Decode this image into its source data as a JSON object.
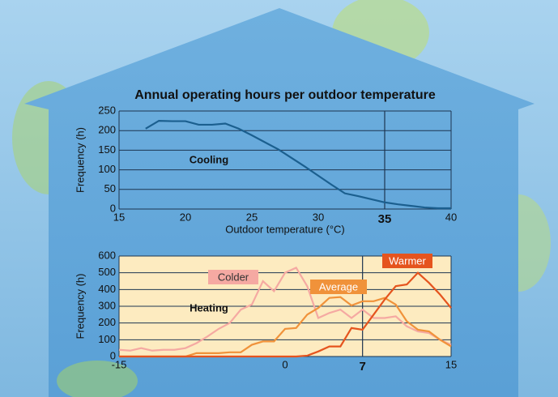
{
  "chart_data": [
    {
      "type": "line",
      "title": "Annual operating hours per outdoor temperature",
      "xlabel": "Outdoor temperature (°C)",
      "ylabel": "Frequency (h)",
      "x": [
        17,
        18,
        19,
        20,
        21,
        22,
        23,
        24,
        25,
        26,
        27,
        28,
        29,
        30,
        31,
        32,
        33,
        34,
        35,
        36,
        37,
        38,
        39,
        40
      ],
      "series": [
        {
          "name": "Cooling",
          "color": "#1b5f8f",
          "values": [
            205,
            225,
            224,
            224,
            215,
            215,
            218,
            205,
            188,
            170,
            152,
            130,
            108,
            85,
            62,
            40,
            33,
            25,
            17,
            12,
            8,
            4,
            2,
            2
          ]
        }
      ],
      "xlim": [
        15,
        40
      ],
      "xticks": [
        15,
        20,
        25,
        30,
        40
      ],
      "reference_line": 35,
      "ylim": [
        0,
        250
      ],
      "yticks": [
        0,
        50,
        100,
        150,
        200,
        250
      ],
      "grid": true
    },
    {
      "type": "line",
      "ylabel": "Frequency (h)",
      "annotation": "Heating",
      "x": [
        -15,
        -14,
        -13,
        -12,
        -11,
        -10,
        -9,
        -8,
        -7,
        -6,
        -5,
        -4,
        -3,
        -2,
        -1,
        0,
        1,
        2,
        3,
        4,
        5,
        6,
        7,
        8,
        9,
        10,
        11,
        12,
        13,
        14,
        15
      ],
      "series": [
        {
          "name": "Colder",
          "color": "#f5a9a2",
          "values": [
            40,
            35,
            50,
            35,
            40,
            40,
            50,
            80,
            120,
            165,
            200,
            280,
            310,
            450,
            390,
            500,
            530,
            420,
            230,
            260,
            280,
            230,
            280,
            230,
            230,
            240,
            180,
            150,
            140,
            100,
            70
          ]
        },
        {
          "name": "Average",
          "color": "#f0923a",
          "values": [
            0,
            0,
            0,
            0,
            0,
            0,
            0,
            20,
            20,
            20,
            25,
            25,
            70,
            90,
            90,
            165,
            170,
            250,
            290,
            350,
            355,
            305,
            330,
            330,
            350,
            310,
            210,
            160,
            150,
            100,
            60
          ]
        },
        {
          "name": "Warmer",
          "color": "#e5541e",
          "values": [
            0,
            0,
            0,
            0,
            0,
            0,
            0,
            0,
            0,
            0,
            0,
            0,
            0,
            0,
            0,
            0,
            0,
            5,
            30,
            60,
            60,
            170,
            160,
            250,
            340,
            420,
            430,
            500,
            440,
            370,
            290
          ]
        }
      ],
      "xlim": [
        -15,
        15
      ],
      "xticks": [
        -15,
        0,
        15
      ],
      "reference_line": 7,
      "ylim": [
        0,
        600
      ],
      "yticks": [
        0,
        100,
        200,
        300,
        400,
        500,
        600
      ],
      "grid": true
    }
  ]
}
